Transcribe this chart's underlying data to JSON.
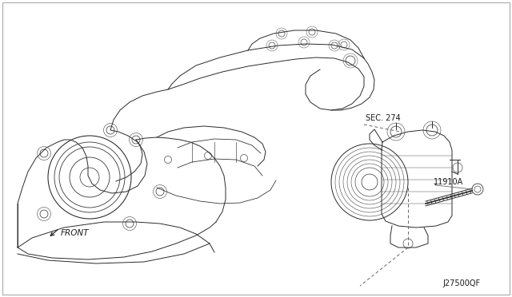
{
  "background_color": "#ffffff",
  "border_color": "#cccccc",
  "label_sec274": "SEC. 274",
  "label_11910A": "11910A",
  "label_front": "FRONT",
  "label_code": "J27500QF",
  "text_color": "#1a1a1a",
  "line_color": "#2a2a2a",
  "dashed_color": "#666666",
  "fig_width": 6.4,
  "fig_height": 3.72,
  "dpi": 100
}
